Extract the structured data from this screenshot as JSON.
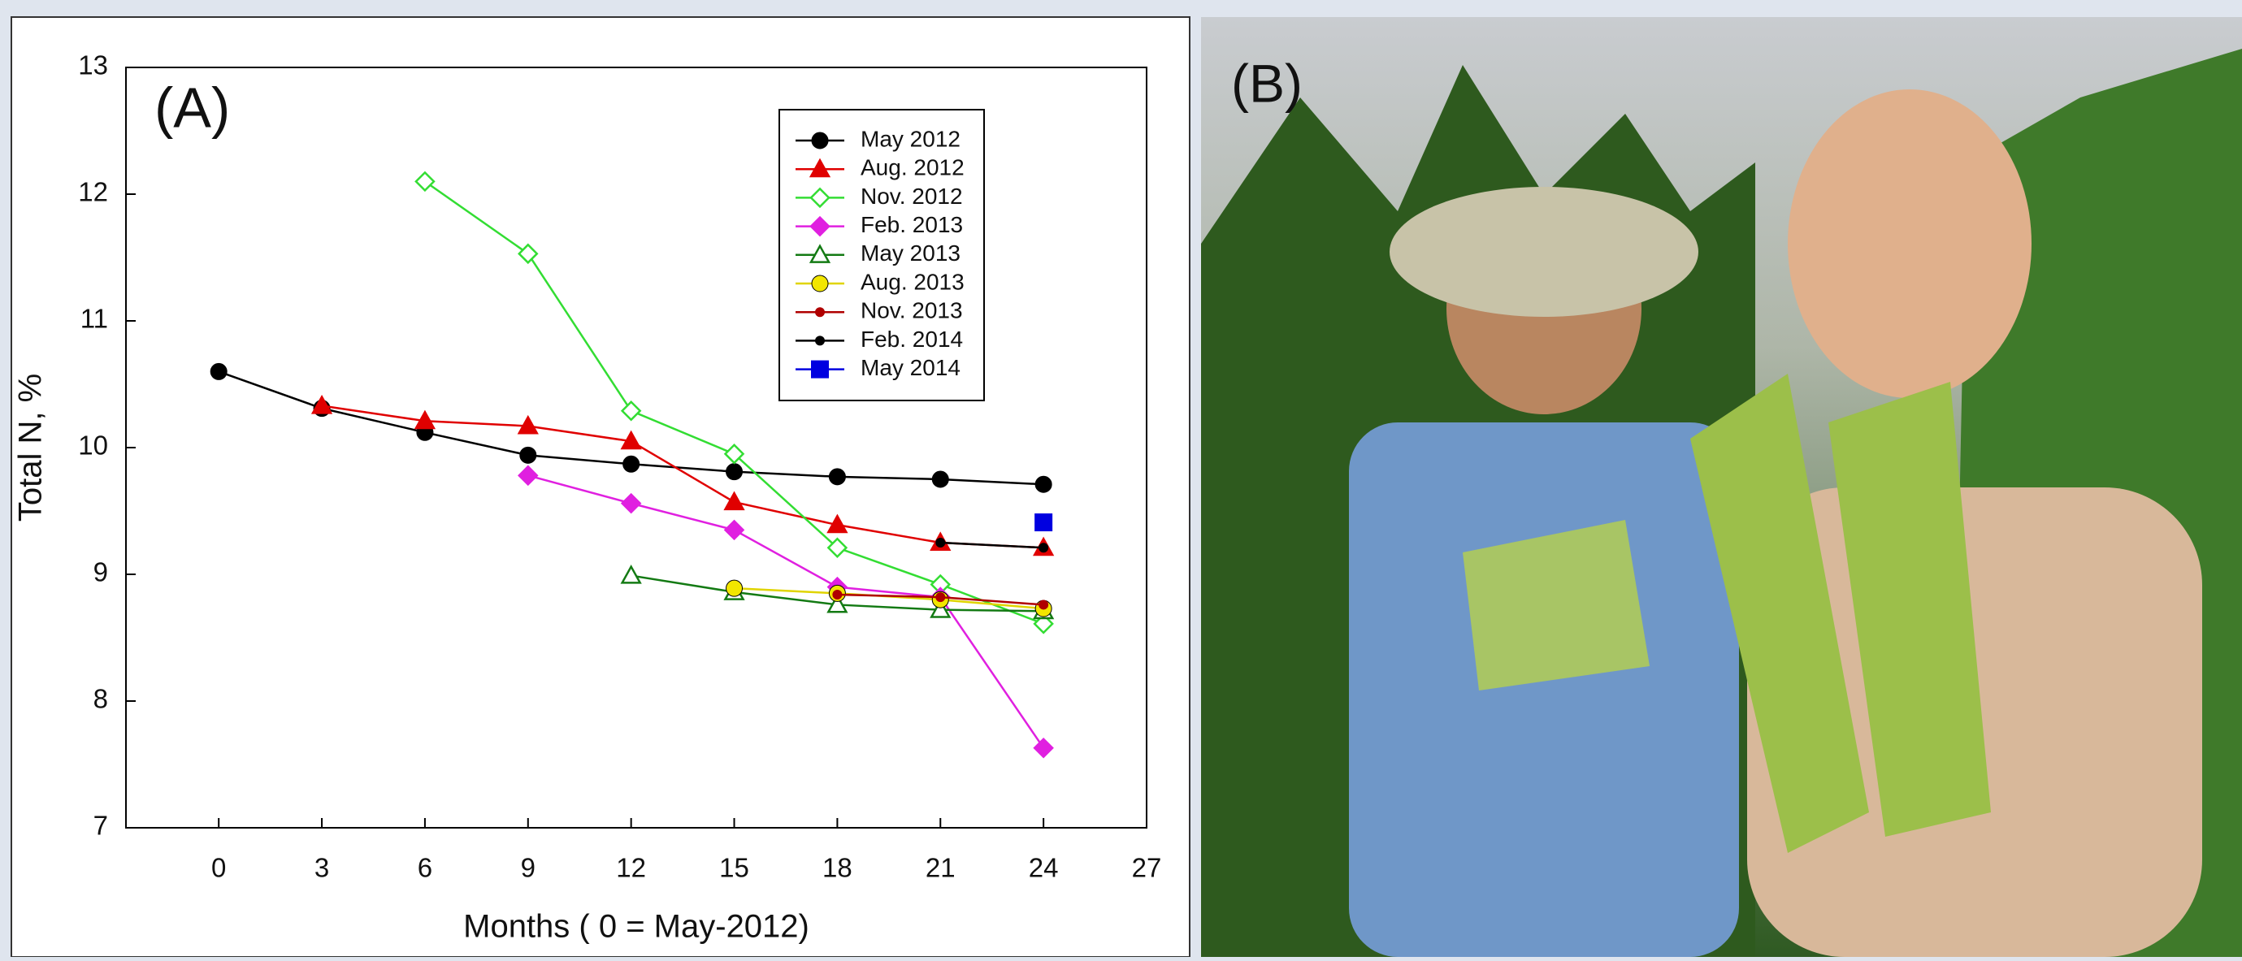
{
  "chart_data": {
    "type": "line",
    "annotation": "(A)",
    "x_label": "Months ( 0 = May-2012)",
    "y_label": "Total N, %",
    "xlim": [
      -2.7,
      27
    ],
    "xticks": [
      0,
      3,
      6,
      9,
      12,
      15,
      18,
      21,
      24,
      27
    ],
    "ylim": [
      7,
      13
    ],
    "yticks": [
      7,
      8,
      9,
      10,
      11,
      12,
      13
    ],
    "legend": "upper-right",
    "series": [
      {
        "name": "May 2012",
        "color": "#000000",
        "marker": "circle",
        "x": [
          0,
          3,
          6,
          9,
          12,
          15,
          18,
          21,
          24
        ],
        "values": [
          10.6,
          10.31,
          10.12,
          9.94,
          9.87,
          9.81,
          9.77,
          9.75,
          9.71
        ]
      },
      {
        "name": "Aug. 2012",
        "color": "#e00000",
        "marker": "triangle",
        "x": [
          3,
          6,
          9,
          12,
          15,
          18,
          21,
          24
        ],
        "values": [
          10.33,
          10.21,
          10.17,
          10.05,
          9.57,
          9.39,
          9.25,
          9.21
        ]
      },
      {
        "name": "Nov. 2012",
        "color": "#33dd33",
        "marker": "open-diamond",
        "x": [
          6,
          9,
          12,
          15,
          18,
          21,
          24
        ],
        "values": [
          12.1,
          11.53,
          10.29,
          9.95,
          9.21,
          8.92,
          8.61
        ]
      },
      {
        "name": "Feb. 2013",
        "color": "#e020e0",
        "marker": "diamond",
        "x": [
          9,
          12,
          15,
          18,
          21,
          24
        ],
        "values": [
          9.78,
          9.56,
          9.35,
          8.9,
          8.82,
          7.63
        ]
      },
      {
        "name": "May 2013",
        "color": "#137a13",
        "marker": "open-triangle",
        "x": [
          12,
          15,
          18,
          21,
          24
        ],
        "values": [
          8.99,
          8.86,
          8.76,
          8.72,
          8.71
        ]
      },
      {
        "name": "Aug. 2013",
        "color": "#f2e600",
        "marker": "circle",
        "x": [
          15,
          18,
          21,
          24
        ],
        "values": [
          8.89,
          8.85,
          8.8,
          8.73
        ]
      },
      {
        "name": "Nov. 2013",
        "color": "#b00000",
        "marker": "small",
        "x": [
          18,
          21,
          24
        ],
        "values": [
          8.84,
          8.82,
          8.76
        ]
      },
      {
        "name": "Feb. 2014",
        "color": "#000000",
        "marker": "small",
        "x": [
          21,
          24
        ],
        "values": [
          9.25,
          9.21
        ]
      },
      {
        "name": "May 2014",
        "color": "#0000e0",
        "marker": "square",
        "x": [
          24
        ],
        "values": [
          9.41
        ]
      }
    ]
  },
  "photo": {
    "label": "(B)"
  }
}
